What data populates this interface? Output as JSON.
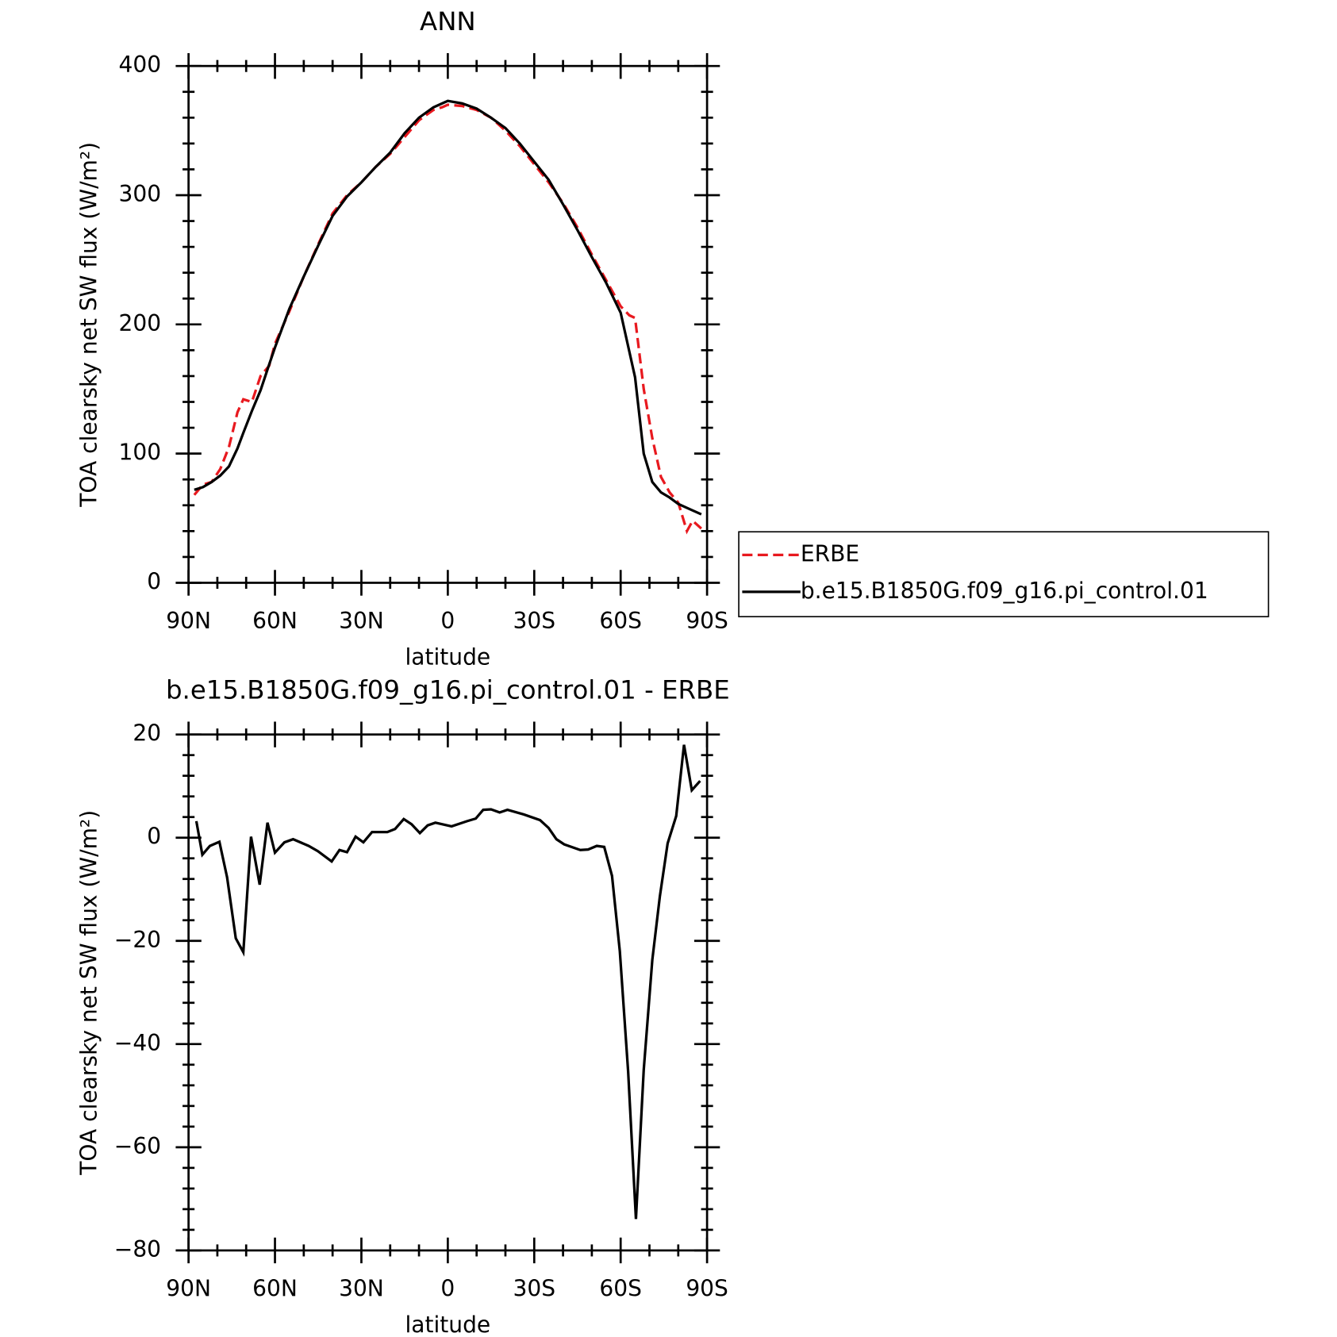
{
  "chart_data": [
    {
      "type": "line",
      "title": "ANN",
      "xlabel": "latitude",
      "ylabel": "TOA clearsky net SW flux (W/m²)",
      "x": [
        88,
        85,
        82,
        79,
        76,
        73,
        71,
        68,
        65,
        62,
        60,
        55,
        50,
        45,
        40,
        35,
        30,
        25,
        20,
        15,
        10,
        5,
        2,
        0,
        -5,
        -10,
        -15,
        -20,
        -25,
        -30,
        -35,
        -40,
        -45,
        -50,
        -55,
        -60,
        -63,
        -65,
        -68,
        -71,
        -74,
        -77,
        -80,
        -83,
        -85,
        -88
      ],
      "series": [
        {
          "name": "ERBE",
          "color": "#e8191f",
          "linestyle": "dashed",
          "values": [
            68,
            76,
            78,
            88,
            105,
            132,
            142,
            140,
            160,
            168,
            185,
            210,
            237,
            262,
            286,
            300,
            310,
            322,
            332,
            345,
            358,
            366,
            368,
            370,
            369,
            366,
            360,
            350,
            338,
            324,
            310,
            294,
            275,
            254,
            234,
            214,
            207,
            205,
            150,
            112,
            82,
            70,
            62,
            40,
            48,
            42
          ]
        },
        {
          "name": "b.e15.B1850G.f09_g16.pi_control.01",
          "color": "#000000",
          "linestyle": "solid",
          "values": [
            72,
            74,
            78,
            83,
            90,
            104,
            116,
            133,
            149,
            169,
            182,
            212,
            237,
            261,
            284,
            299,
            310,
            322,
            333,
            348,
            360,
            368,
            371,
            373,
            371,
            367,
            360,
            352,
            340,
            326,
            312,
            293,
            273,
            252,
            232,
            209,
            179,
            159,
            100,
            78,
            70,
            66,
            61,
            58,
            56,
            53
          ]
        }
      ],
      "xlim": [
        90,
        -90
      ],
      "xticks": [
        {
          "value": 90,
          "label": "90N"
        },
        {
          "value": 60,
          "label": "60N"
        },
        {
          "value": 30,
          "label": "30N"
        },
        0,
        {
          "value": -30,
          "label": "30S"
        },
        {
          "value": -60,
          "label": "60S"
        },
        {
          "value": -90,
          "label": "90S"
        }
      ],
      "ylim": [
        0,
        400
      ],
      "yticks": [
        0,
        100,
        200,
        300,
        400
      ],
      "legend": "right"
    },
    {
      "type": "line",
      "title": "b.e15.B1850G.f09_g16.pi_control.01 - ERBE",
      "xlabel": "latitude",
      "ylabel": "TOA clearsky net SW flux (W/m²)",
      "x": [
        87.3,
        85.2,
        82.6,
        79.3,
        76.6,
        73.6,
        71.0,
        68.3,
        65.3,
        62.6,
        60.0,
        56.7,
        53.7,
        48.3,
        45.1,
        40.3,
        37.6,
        35.0,
        32.0,
        29.3,
        26.3,
        21.0,
        18.3,
        15.3,
        12.6,
        9.7,
        7.0,
        4.3,
        -1.3,
        -6.7,
        -9.7,
        -12.3,
        -15.0,
        -18.0,
        -20.7,
        -26.4,
        -32.0,
        -35.0,
        -37.7,
        -40.4,
        -46.0,
        -48.7,
        -51.7,
        -54.3,
        -57.0,
        -59.7,
        -62.6,
        -65.3,
        -68.0,
        -71.0,
        -73.6,
        -76.3,
        -79.3,
        -82.0,
        -84.7,
        -87.6
      ],
      "series": [
        {
          "color": "#000000",
          "linestyle": "solid",
          "values": [
            3.2,
            -3.3,
            -1.6,
            -0.8,
            -7.7,
            -19.5,
            -22.2,
            0.2,
            -9.1,
            2.9,
            -2.9,
            -0.9,
            -0.3,
            -1.6,
            -2.6,
            -4.6,
            -2.4,
            -2.8,
            0.2,
            -0.9,
            1.1,
            1.1,
            1.7,
            3.6,
            2.6,
            0.9,
            2.4,
            2.9,
            2.2,
            3.2,
            3.7,
            5.4,
            5.5,
            4.9,
            5.4,
            4.5,
            3.4,
            1.9,
            -0.3,
            -1.3,
            -2.4,
            -2.3,
            -1.6,
            -1.8,
            -7.4,
            -22.0,
            -45.3,
            -73.9,
            -45.0,
            -23.7,
            -11.4,
            -1.1,
            4.2,
            18.0,
            9.2,
            11.0
          ]
        }
      ],
      "xlim": [
        90,
        -90
      ],
      "xticks": [
        {
          "value": 90,
          "label": "90N"
        },
        {
          "value": 60,
          "label": "60N"
        },
        {
          "value": 30,
          "label": "30N"
        },
        0,
        {
          "value": -30,
          "label": "30S"
        },
        {
          "value": -60,
          "label": "60S"
        },
        {
          "value": -90,
          "label": "90S"
        }
      ],
      "ylim": [
        -80,
        20
      ],
      "yticks": [
        {
          "value": -80,
          "label": "−80"
        },
        {
          "value": -60,
          "label": "−60"
        },
        {
          "value": -40,
          "label": "−40"
        },
        {
          "value": -20,
          "label": "−20"
        },
        0,
        20
      ]
    }
  ]
}
